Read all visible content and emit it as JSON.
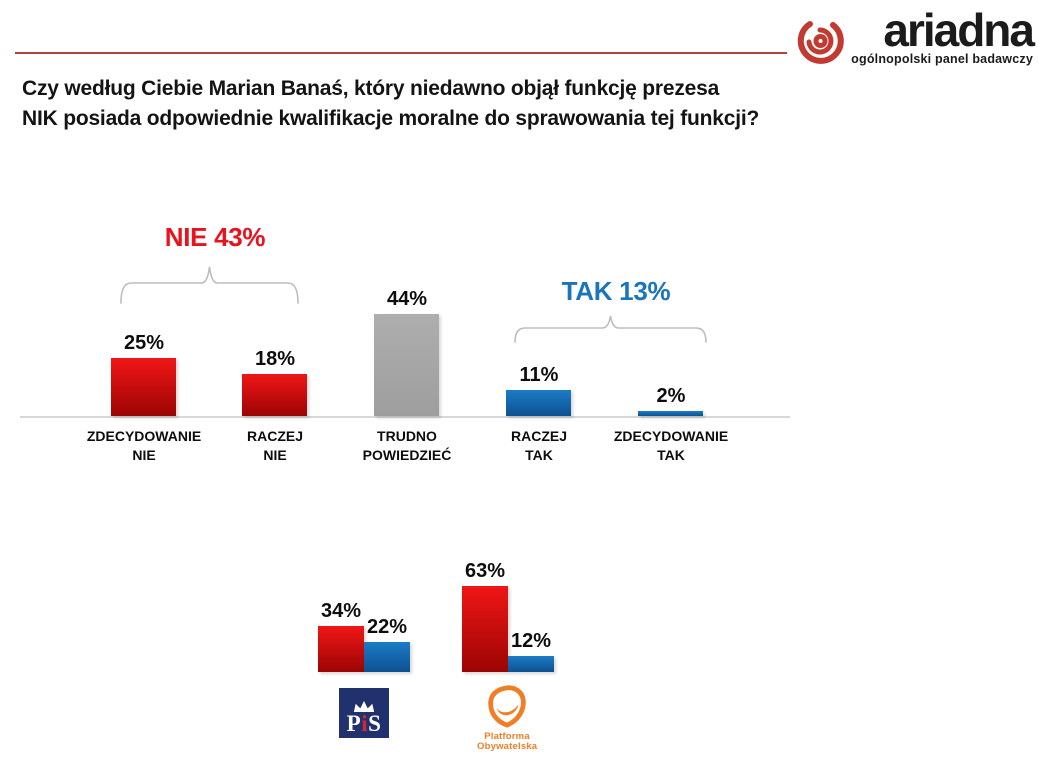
{
  "brand": {
    "name": "ariadna",
    "tagline": "ogólnopolski panel badawczy"
  },
  "question": {
    "line1": "Czy według Ciebie Marian Banaś, który niedawno objął funkcję prezesa",
    "line2": "NIK posiada odpowiednie kwalifikacje moralne do sprawowania tej funkcji?"
  },
  "colors": {
    "rule": "#b2423f",
    "brand_red": "#c23a30",
    "axis": "#d8d8d8",
    "bracket": "#bdbdbd",
    "no_top": "#f01616",
    "no_bottom": "#9c0404",
    "yes_top": "#1b7cc5",
    "yes_bottom": "#0d5191",
    "neutral_top": "#aeaeae",
    "neutral_bottom": "#9e9e9e",
    "no_text": "#e8131c",
    "yes_text": "#1b75bb",
    "pis_navy": "#20316e",
    "pis_red": "#d22730",
    "po_orange": "#f07e26"
  },
  "chart_data": [
    {
      "name": "overall_responses",
      "type": "bar",
      "unit": "percent",
      "title": "",
      "xlabel": "",
      "ylabel": "",
      "ylim": [
        0,
        50
      ],
      "grid": false,
      "legend": null,
      "categories": [
        "ZDECYDOWANIE NIE",
        "RACZEJ NIE",
        "TRUDNO POWIEDZIEĆ",
        "RACZEJ TAK",
        "ZDECYDOWANIE TAK"
      ],
      "category_lines": [
        [
          "ZDECYDOWANIE",
          "NIE"
        ],
        [
          "RACZEJ",
          "NIE"
        ],
        [
          "TRUDNO",
          "POWIEDZIEĆ"
        ],
        [
          "RACZEJ",
          "TAK"
        ],
        [
          "ZDECYDOWANIE",
          "TAK"
        ]
      ],
      "values": [
        25,
        18,
        44,
        11,
        2
      ],
      "value_labels": [
        "25%",
        "18%",
        "44%",
        "11%",
        "2%"
      ],
      "bar_palette": [
        "no",
        "no",
        "neutral",
        "yes",
        "yes"
      ],
      "annotations": [
        {
          "label": "NIE 43%",
          "value": 43,
          "spans_categories": [
            0,
            1
          ],
          "color_key": "no_text"
        },
        {
          "label": "TAK 13%",
          "value": 13,
          "spans_categories": [
            3,
            4
          ],
          "color_key": "yes_text"
        }
      ]
    },
    {
      "name": "responses_by_party_electorate",
      "type": "bar",
      "unit": "percent",
      "title": "",
      "grid": false,
      "legend": null,
      "categories": [
        "PiS",
        "Platforma Obywatelska"
      ],
      "series": [
        {
          "name": "NIE",
          "color_key": "no",
          "values": [
            34,
            63
          ],
          "value_labels": [
            "34%",
            "63%"
          ]
        },
        {
          "name": "TAK",
          "color_key": "yes",
          "values": [
            22,
            12
          ],
          "value_labels": [
            "22%",
            "12%"
          ]
        }
      ]
    }
  ],
  "party_logos": {
    "pis": {
      "p": "P",
      "i": "i",
      "s": "S"
    },
    "po": {
      "line1": "Platforma",
      "line2": "Obywatelska"
    }
  }
}
